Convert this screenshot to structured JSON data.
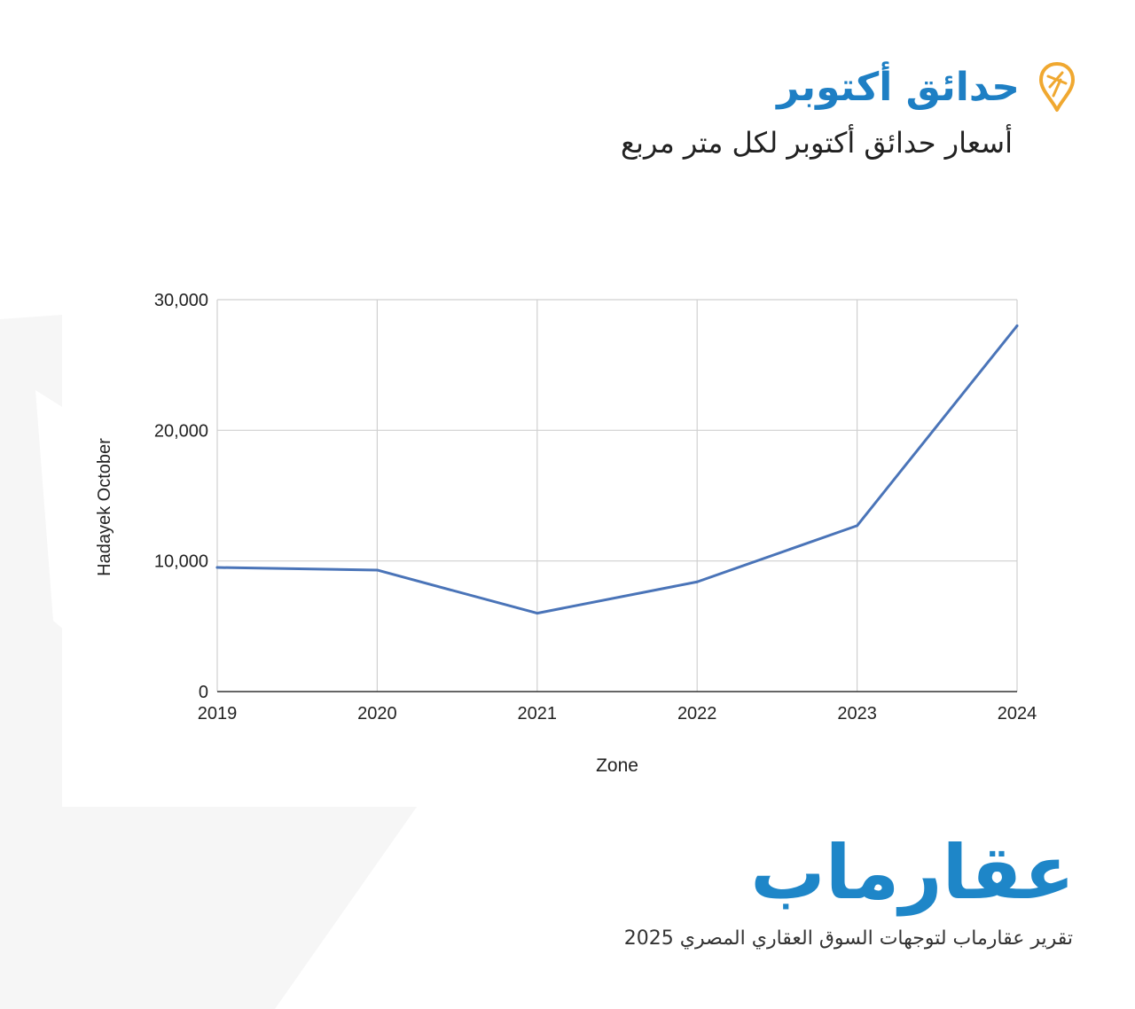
{
  "header": {
    "title": "حدائق أكتوبر",
    "subtitle": "أسعار حدائق أكتوبر لكل متر مربع"
  },
  "icons": {
    "logo_pin": "map-pin-icon"
  },
  "colors": {
    "accent": "#1e7fc4",
    "line": "#4a74b8",
    "pin": "#f0a830",
    "grid": "#d0d0d0"
  },
  "chart_data": {
    "type": "line",
    "categories": [
      "2019",
      "2020",
      "2021",
      "2022",
      "2023",
      "2024"
    ],
    "series": [
      {
        "values": [
          9500,
          9300,
          6000,
          8400,
          12700,
          28000
        ]
      }
    ],
    "xlabel": "Zone",
    "ylabel": "Hadayek October",
    "ylim": [
      0,
      30000
    ],
    "yticks": [
      "0",
      "10,000",
      "20,000",
      "30,000"
    ],
    "grid": true,
    "legend": "none"
  },
  "footer": {
    "brand": "عقارماب",
    "report": "تقرير عقارماب لتوجهات السوق العقاري المصري 2025"
  }
}
